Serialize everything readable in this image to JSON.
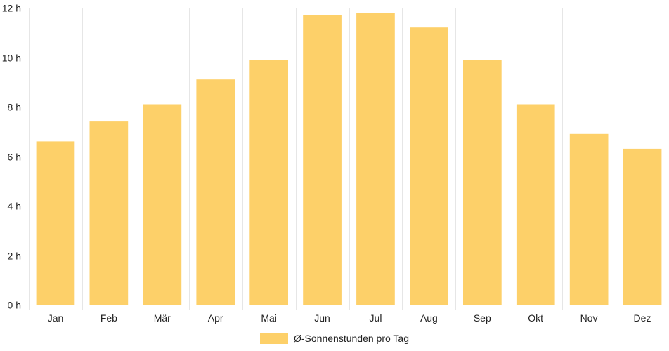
{
  "chart_data": {
    "type": "bar",
    "categories": [
      "Jan",
      "Feb",
      "Mär",
      "Apr",
      "Mai",
      "Jun",
      "Jul",
      "Aug",
      "Sep",
      "Okt",
      "Nov",
      "Dez"
    ],
    "series": [
      {
        "name": "Ø-Sonnenstunden pro Tag",
        "values": [
          6.6,
          7.4,
          8.1,
          9.1,
          9.9,
          11.7,
          11.8,
          11.2,
          9.9,
          8.1,
          6.9,
          6.3
        ],
        "color": "#fdd069"
      }
    ],
    "ylim": [
      0,
      12
    ],
    "y_ticks": [
      0,
      2,
      4,
      6,
      8,
      10,
      12
    ],
    "y_tick_suffix": " h",
    "grid": true,
    "legend": "bottom",
    "title": "",
    "xlabel": "",
    "ylabel": ""
  }
}
